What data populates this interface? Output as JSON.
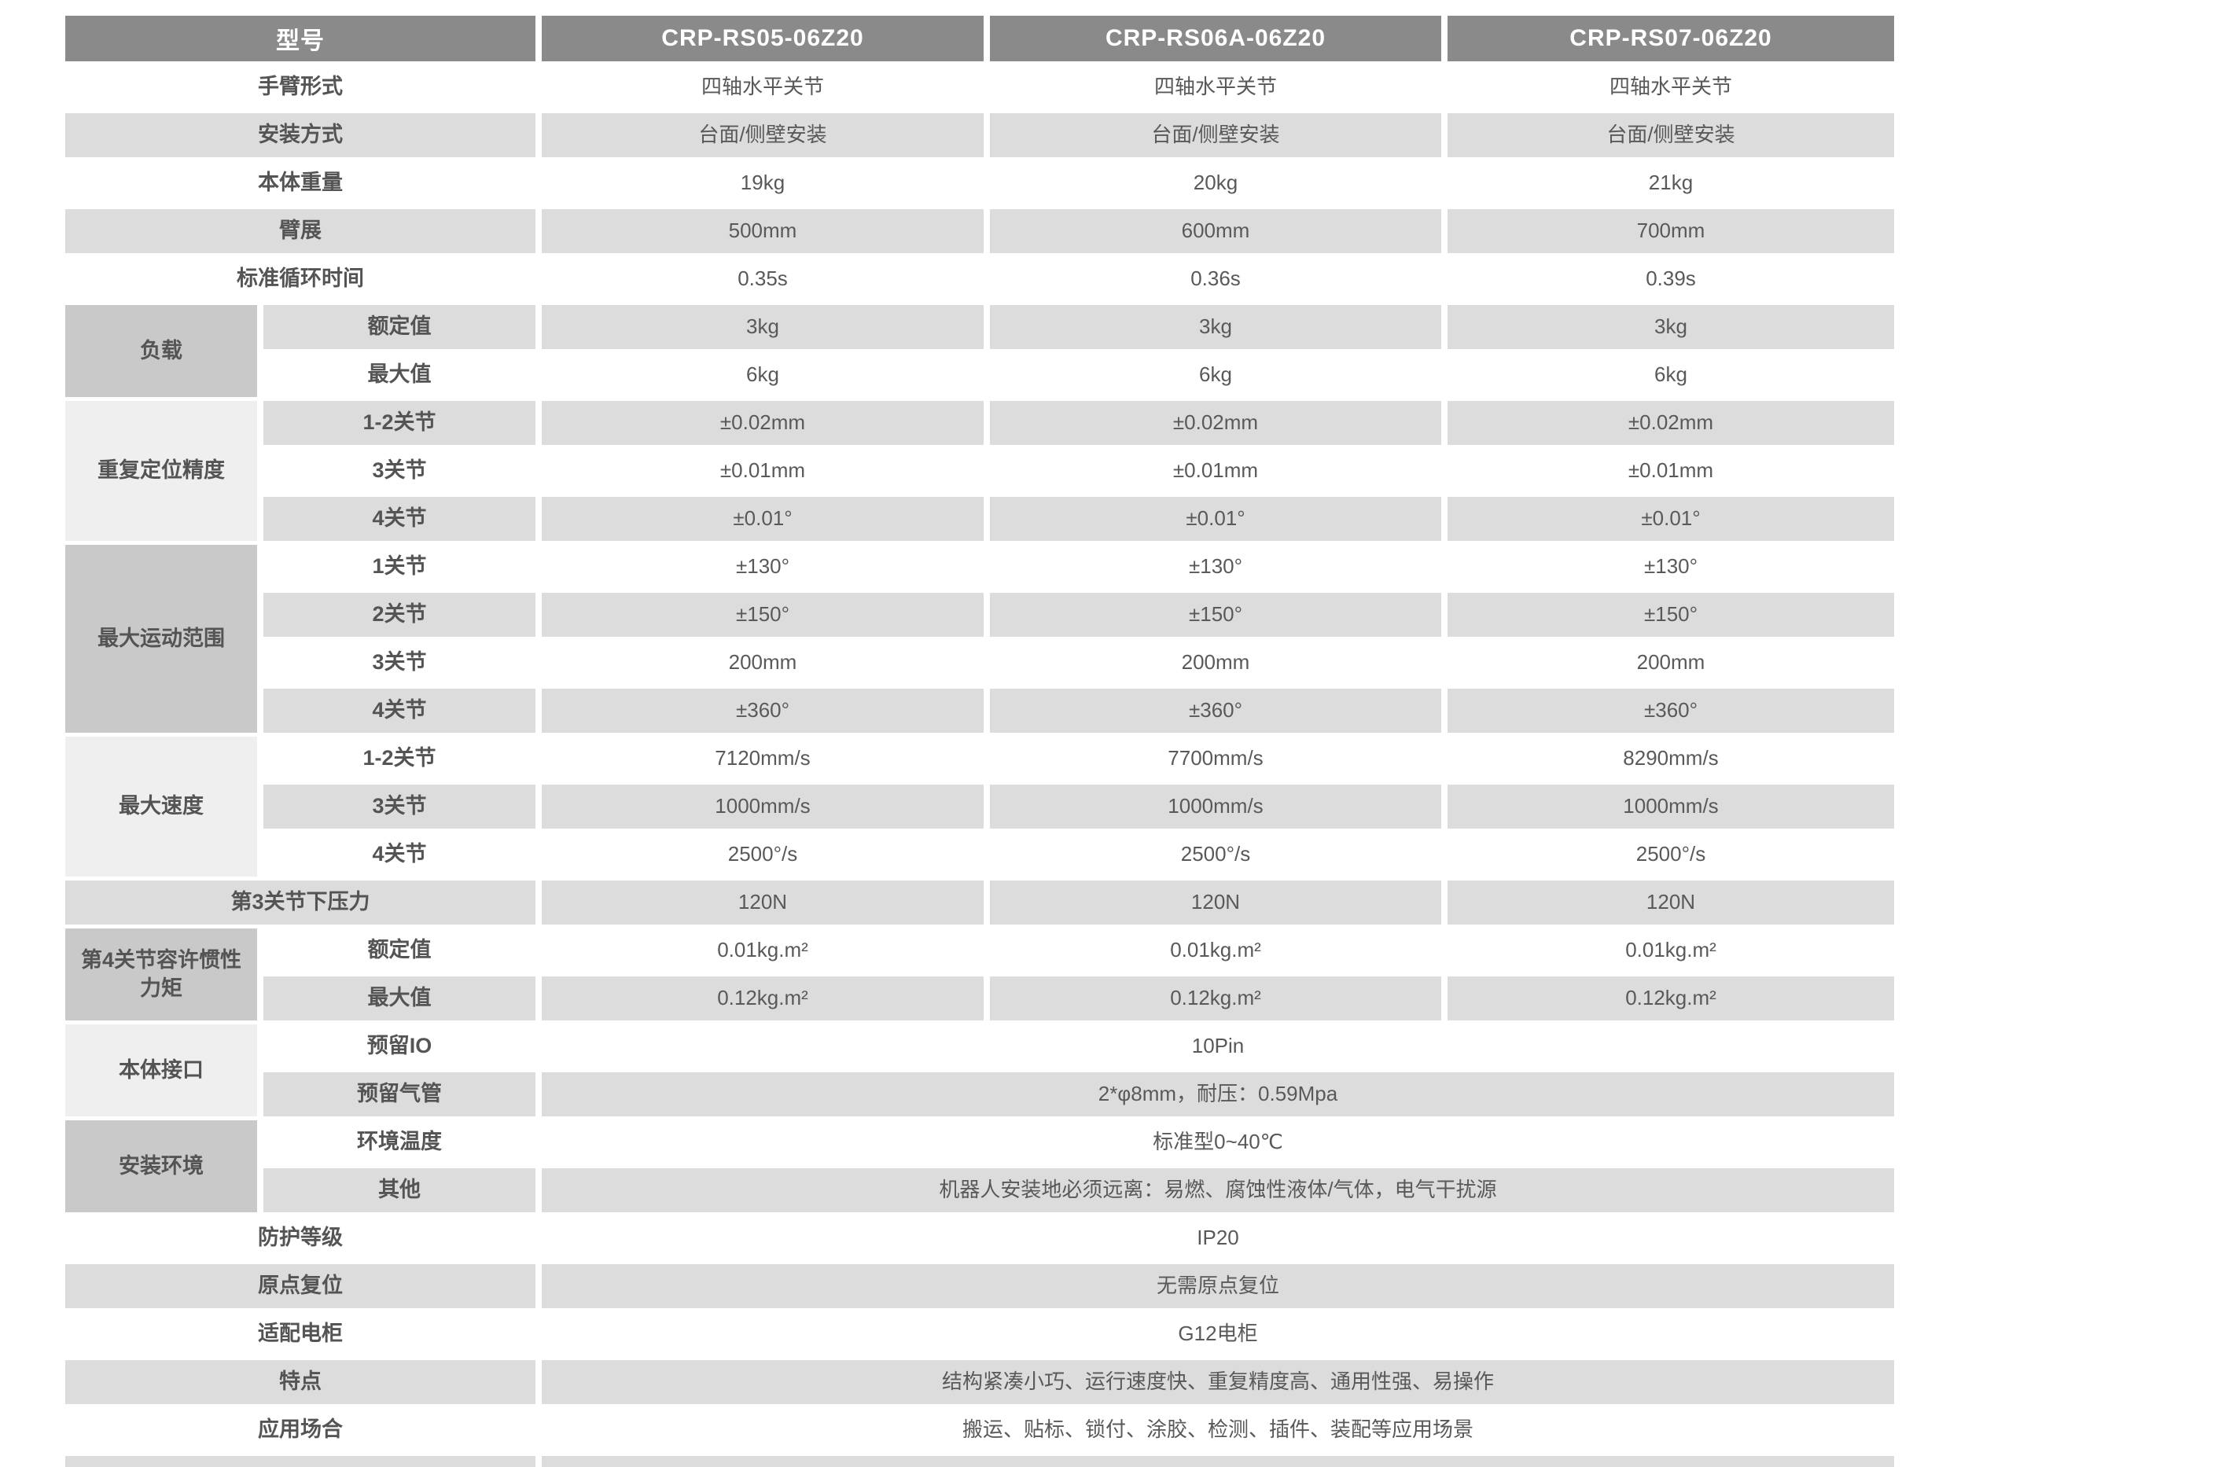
{
  "colors": {
    "header_bg": "#8a8a8a",
    "header_text": "#ffffff",
    "stripe_gray": "#dcdcdc",
    "group_cell_dark": "#c9c9c9",
    "group_cell_light": "#efefef",
    "body_text": "#595959",
    "page_bg": "#ffffff"
  },
  "table": {
    "header": {
      "label": "型号",
      "models": [
        "CRP-RS05-06Z20",
        "CRP-RS06A-06Z20",
        "CRP-RS07-06Z20"
      ]
    },
    "rows": [
      {
        "label": "手臂形式",
        "values": [
          "四轴水平关节",
          "四轴水平关节",
          "四轴水平关节"
        ]
      },
      {
        "label": "安装方式",
        "values": [
          "台面/侧壁安装",
          "台面/侧壁安装",
          "台面/侧壁安装"
        ]
      },
      {
        "label": "本体重量",
        "values": [
          "19kg",
          "20kg",
          "21kg"
        ]
      },
      {
        "label": "臂展",
        "values": [
          "500mm",
          "600mm",
          "700mm"
        ]
      },
      {
        "label": "标准循环时间",
        "values": [
          "0.35s",
          "0.36s",
          "0.39s"
        ]
      },
      {
        "group": "负载",
        "label": "额定值",
        "values": [
          "3kg",
          "3kg",
          "3kg"
        ]
      },
      {
        "label": "最大值",
        "values": [
          "6kg",
          "6kg",
          "6kg"
        ]
      },
      {
        "group": "重复定位精度",
        "label": "1-2关节",
        "values": [
          "±0.02mm",
          "±0.02mm",
          "±0.02mm"
        ]
      },
      {
        "label": "3关节",
        "values": [
          "±0.01mm",
          "±0.01mm",
          "±0.01mm"
        ]
      },
      {
        "label": "4关节",
        "values": [
          "±0.01°",
          "±0.01°",
          "±0.01°"
        ]
      },
      {
        "group": "最大运动范围",
        "label": "1关节",
        "values": [
          "±130°",
          "±130°",
          "±130°"
        ]
      },
      {
        "label": "2关节",
        "values": [
          "±150°",
          "±150°",
          "±150°"
        ]
      },
      {
        "label": "3关节",
        "values": [
          "200mm",
          "200mm",
          "200mm"
        ]
      },
      {
        "label": "4关节",
        "values": [
          "±360°",
          "±360°",
          "±360°"
        ]
      },
      {
        "group": "最大速度",
        "label": "1-2关节",
        "values": [
          "7120mm/s",
          "7700mm/s",
          "8290mm/s"
        ]
      },
      {
        "label": "3关节",
        "values": [
          "1000mm/s",
          "1000mm/s",
          "1000mm/s"
        ]
      },
      {
        "label": "4关节",
        "values": [
          "2500°/s",
          "2500°/s",
          "2500°/s"
        ]
      },
      {
        "label": "第3关节下压力",
        "values": [
          "120N",
          "120N",
          "120N"
        ]
      },
      {
        "group": "第4关节容许惯性力矩",
        "label": "额定值",
        "values": [
          "0.01kg.m²",
          "0.01kg.m²",
          "0.01kg.m²"
        ]
      },
      {
        "label": "最大值",
        "values": [
          "0.12kg.m²",
          "0.12kg.m²",
          "0.12kg.m²"
        ]
      },
      {
        "group": "本体接口",
        "label": "预留IO",
        "value": "10Pin"
      },
      {
        "label": "预留气管",
        "value": "2*φ8mm，耐压：0.59Mpa"
      },
      {
        "group": "安装环境",
        "label": "环境温度",
        "value": "标准型0~40℃"
      },
      {
        "label": "其他",
        "value": "机器人安装地必须远离：易燃、腐蚀性液体/气体，电气干扰源"
      },
      {
        "label": "防护等级",
        "value": "IP20"
      },
      {
        "label": "原点复位",
        "value": "无需原点复位"
      },
      {
        "label": "适配电柜",
        "value": "G12电柜"
      },
      {
        "label": "特点",
        "value": "结构紧凑小巧、运行速度快、重复精度高、通用性强、易操作"
      },
      {
        "label": "应用场合",
        "value": "搬运、贴标、锁付、涂胶、检测、插件、装配等应用场景"
      },
      {
        "label": "",
        "value": ""
      }
    ]
  }
}
